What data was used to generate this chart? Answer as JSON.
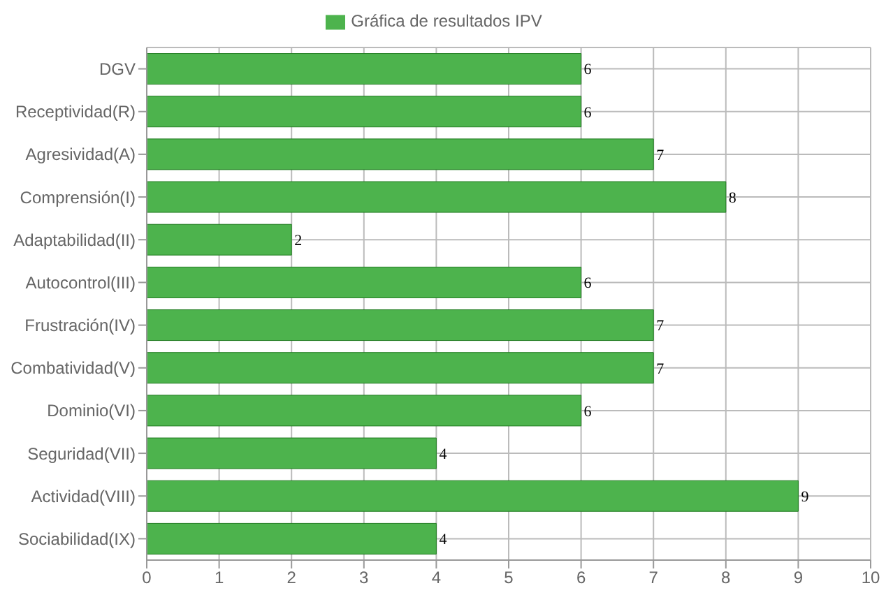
{
  "chart_data": {
    "type": "bar",
    "orientation": "horizontal",
    "categories": [
      "DGV",
      "Receptividad(R)",
      "Agresividad(A)",
      "Comprensión(I)",
      "Adaptabilidad(II)",
      "Autocontrol(III)",
      "Frustración(IV)",
      "Combatividad(V)",
      "Dominio(VI)",
      "Seguridad(VII)",
      "Actividad(VIII)",
      "Sociabilidad(IX)"
    ],
    "series": [
      {
        "name": "Gráfica de resultados IPV",
        "color": "#4db34d",
        "values": [
          6,
          6,
          7,
          8,
          2,
          6,
          7,
          7,
          6,
          4,
          9,
          4
        ]
      }
    ],
    "xlim": [
      0,
      10
    ],
    "xticks": [
      0,
      1,
      2,
      3,
      4,
      5,
      6,
      7,
      8,
      9,
      10
    ],
    "grid": true,
    "legend": "top",
    "data_labels": true
  }
}
